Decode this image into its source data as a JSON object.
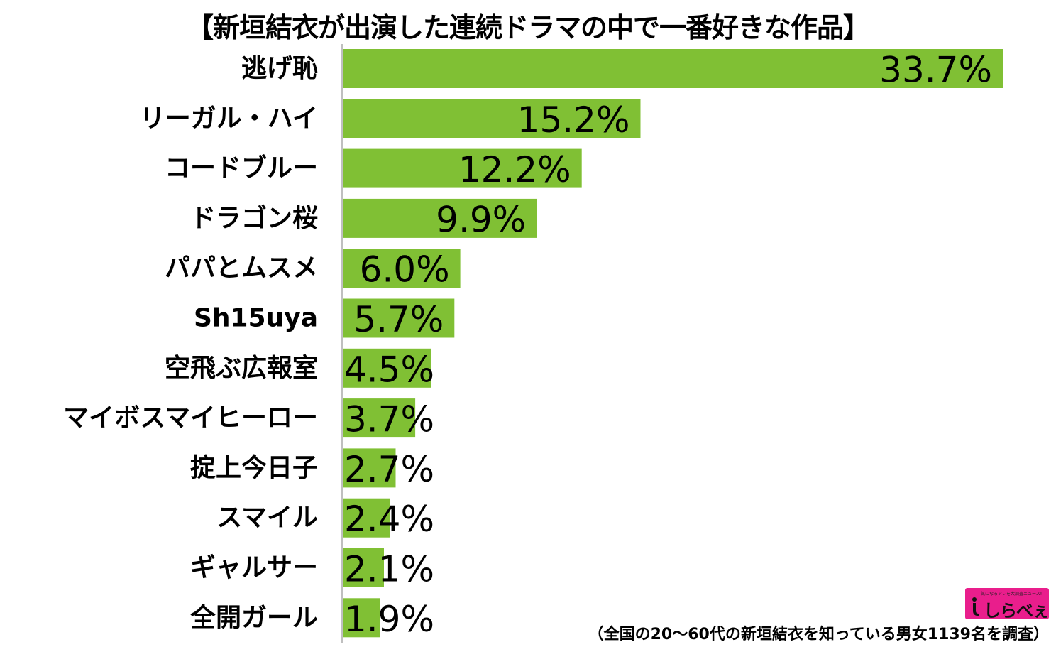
{
  "title": "【新垣結衣が出演した連続ドラマの中で一番好きな作品】",
  "footnote": "（全国の20～60代の新垣結衣を知っている男女1139名を調査）",
  "logo": {
    "text": "しらべぇ",
    "tagline": "気になるアレを大調査ニュース!",
    "color": "#e91e8c"
  },
  "colors": {
    "bar": "#80c034",
    "axis": "#bfbfbf",
    "text": "#000000"
  },
  "chart_data": {
    "type": "bar",
    "orientation": "horizontal",
    "title": "【新垣結衣が出演した連続ドラマの中で一番好きな作品】",
    "categories": [
      "逃げ恥",
      "リーガル・ハイ",
      "コードブルー",
      "ドラゴン桜",
      "パパとムスメ",
      "Sh15uya",
      "空飛ぶ広報室",
      "マイボスマイヒーロー",
      "掟上今日子",
      "スマイル",
      "ギャルサー",
      "全開ガール"
    ],
    "values": [
      33.7,
      15.2,
      12.2,
      9.9,
      6.0,
      5.7,
      4.5,
      3.7,
      2.7,
      2.4,
      2.1,
      1.9
    ],
    "value_labels": [
      "33.7%",
      "15.2%",
      "12.2%",
      "9.9%",
      "6.0%",
      "5.7%",
      "4.5%",
      "3.7%",
      "2.7%",
      "2.4%",
      "2.1%",
      "1.9%"
    ],
    "xlim": [
      0,
      35
    ],
    "unit": "%",
    "grid": false,
    "legend": "none"
  }
}
